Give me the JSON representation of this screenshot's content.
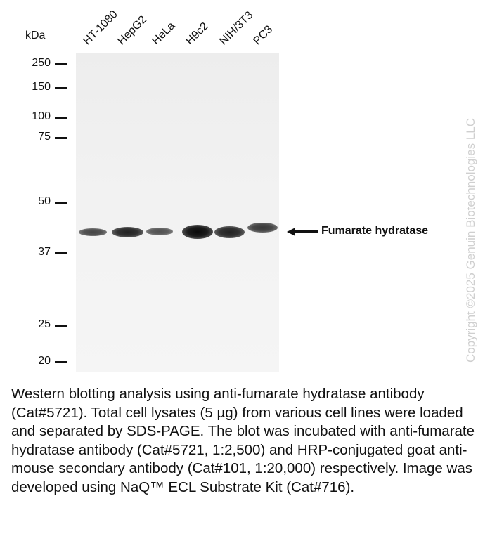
{
  "figure": {
    "kda_label": "kDa",
    "lanes": [
      {
        "name": "HT-1080",
        "intensity": 0.75
      },
      {
        "name": "HepG2",
        "intensity": 0.9
      },
      {
        "name": "HeLa",
        "intensity": 0.7
      },
      {
        "name": "H9c2",
        "intensity": 1.0
      },
      {
        "name": "NIH/3T3",
        "intensity": 0.9
      },
      {
        "name": "PC3",
        "intensity": 0.8
      }
    ],
    "markers": [
      "250",
      "150",
      "100",
      "75",
      "50",
      "37",
      "25",
      "20"
    ],
    "band_label": "Fumarate hydratase",
    "watermark": "Copyright ©2025 Genuin Biotechnologies LLC"
  },
  "caption": "Western blotting analysis using anti-fumarate hydratase antibody (Cat#5721). Total cell lysates (5 µg) from various cell lines were loaded and separated by SDS-PAGE. The blot was incubated with anti-fumarate hydratase antibody (Cat#5721, 1:2,500) and HRP-conjugated goat anti-mouse secondary antibody (Cat#101, 1:20,000) respectively. Image was developed using NaQ™ ECL Substrate Kit (Cat#716)."
}
